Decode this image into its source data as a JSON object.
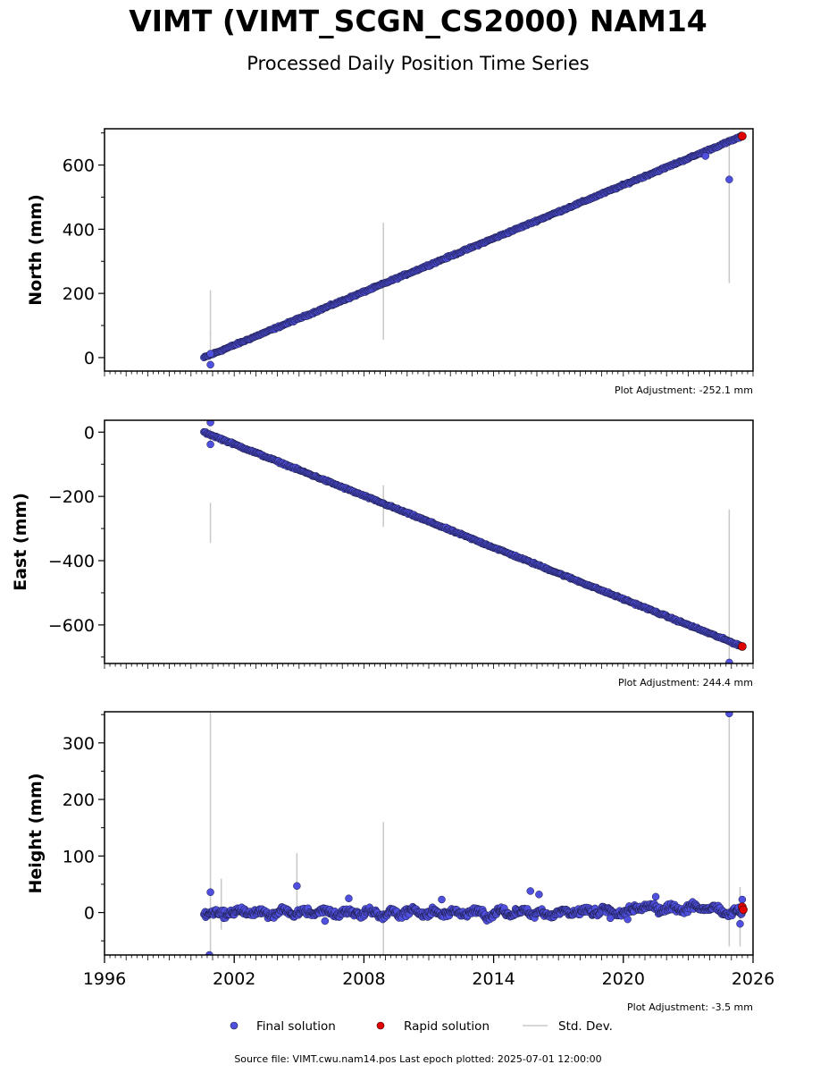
{
  "header": {
    "title": "VIMT (VIMT_SCGN_CS2000) NAM14",
    "subtitle": "Processed Daily Position Time Series"
  },
  "footer": {
    "source": "Source file: VIMT.cwu.nam14.pos  Last epoch plotted: 2025-07-01 12:00:00"
  },
  "legend": {
    "final": "Final solution",
    "rapid": "Rapid solution",
    "std": "Std. Dev."
  },
  "colors": {
    "final_fill": "#5050e0",
    "final_edge": "#1a1a40",
    "rapid_fill": "#e00000",
    "std": "#c8c8c8"
  },
  "chart_data": [
    {
      "type": "scatter",
      "ylabel": "North (mm)",
      "adjustment": "Plot Adjustment: -252.1 mm",
      "xlim": [
        1996,
        2026
      ],
      "ylim": [
        -42,
        713
      ],
      "yticks": [
        0,
        200,
        400,
        600
      ],
      "ytick_labels": [
        "0",
        "200",
        "400",
        "600"
      ],
      "trend": [
        [
          2000.6,
          0
        ],
        [
          2025.5,
          690
        ]
      ],
      "outliers": [
        [
          2000.9,
          -22
        ],
        [
          2000.9,
          12
        ],
        [
          2024.9,
          555
        ],
        [
          2023.8,
          628
        ]
      ],
      "rapid": [
        [
          2025.5,
          690
        ]
      ],
      "stddev": [
        [
          2000.9,
          70,
          210
        ],
        [
          2000.9,
          -5,
          80
        ],
        [
          2008.9,
          55,
          420
        ],
        [
          2024.9,
          232,
          690
        ]
      ]
    },
    {
      "type": "scatter",
      "ylabel": "East (mm)",
      "adjustment": "Plot Adjustment: 244.4 mm",
      "xlim": [
        1996,
        2026
      ],
      "ylim": [
        -720,
        37
      ],
      "yticks": [
        0,
        -200,
        -400,
        -600
      ],
      "ytick_labels": [
        "0",
        "−200",
        "−400",
        "−600"
      ],
      "trend": [
        [
          2000.6,
          0
        ],
        [
          2025.5,
          -667
        ]
      ],
      "outliers": [
        [
          2000.9,
          30
        ],
        [
          2000.9,
          -38
        ],
        [
          2024.9,
          -717
        ]
      ],
      "rapid": [
        [
          2025.5,
          -667
        ]
      ],
      "stddev": [
        [
          2000.9,
          -345,
          -220
        ],
        [
          2000.9,
          -30,
          10
        ],
        [
          2008.9,
          -295,
          -165
        ],
        [
          2024.9,
          -720,
          -240
        ]
      ]
    },
    {
      "type": "scatter",
      "ylabel": "Height (mm)",
      "adjustment": "Plot Adjustment: -3.5 mm",
      "xlim": [
        1996,
        2026
      ],
      "ylim": [
        -75,
        355
      ],
      "yticks": [
        0,
        100,
        200,
        300
      ],
      "ytick_labels": [
        "0",
        "100",
        "200",
        "300"
      ],
      "xticks": [
        1996,
        2002,
        2008,
        2014,
        2020,
        2026
      ],
      "xtick_labels": [
        "1996",
        "2002",
        "2008",
        "2014",
        "2020",
        "2026"
      ],
      "noise_amplitude": 8,
      "outliers": [
        [
          2000.9,
          36
        ],
        [
          2000.85,
          -75
        ],
        [
          2004.9,
          47
        ],
        [
          2006.2,
          -15
        ],
        [
          2007.3,
          25
        ],
        [
          2011.6,
          23
        ],
        [
          2015.7,
          38
        ],
        [
          2016.1,
          32
        ],
        [
          2019.4,
          -10
        ],
        [
          2020.2,
          -12
        ],
        [
          2021.5,
          28
        ],
        [
          2024.9,
          352
        ],
        [
          2025.4,
          -20
        ],
        [
          2025.5,
          23
        ]
      ],
      "rapid": [
        [
          2025.5,
          10
        ],
        [
          2025.55,
          5
        ]
      ],
      "stddev": [
        [
          2000.9,
          -70,
          355
        ],
        [
          2001.4,
          -30,
          60
        ],
        [
          2004.9,
          -10,
          105
        ],
        [
          2008.9,
          -75,
          160
        ],
        [
          2024.9,
          -60,
          355
        ],
        [
          2025.4,
          -60,
          45
        ]
      ]
    }
  ]
}
